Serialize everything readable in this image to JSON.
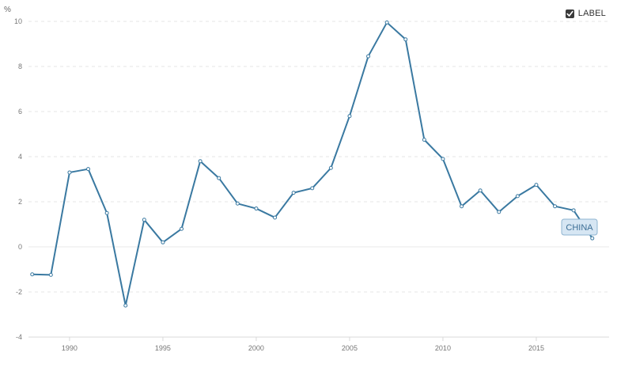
{
  "legend": {
    "label": "LABEL",
    "checked": true
  },
  "chart_data": {
    "type": "line",
    "unit": "%",
    "x": [
      1988,
      1989,
      1990,
      1991,
      1992,
      1993,
      1994,
      1995,
      1996,
      1997,
      1998,
      1999,
      2000,
      2001,
      2002,
      2003,
      2004,
      2005,
      2006,
      2007,
      2008,
      2009,
      2010,
      2011,
      2012,
      2013,
      2014,
      2015,
      2016,
      2017,
      2018
    ],
    "series": [
      {
        "name": "CHINA",
        "color": "#3a79a1",
        "values": [
          -1.22,
          -1.24,
          3.3,
          3.45,
          1.5,
          -2.6,
          1.2,
          0.2,
          0.8,
          3.8,
          3.05,
          1.92,
          1.7,
          1.3,
          2.4,
          2.6,
          3.5,
          5.8,
          8.45,
          9.95,
          9.2,
          4.75,
          3.9,
          1.8,
          2.5,
          1.55,
          2.25,
          2.75,
          1.8,
          1.62,
          0.38
        ]
      }
    ],
    "xticks": [
      1990,
      1995,
      2000,
      2005,
      2010,
      2015
    ],
    "yticks": [
      -4,
      -2,
      0,
      2,
      4,
      6,
      8,
      10
    ],
    "xlim": [
      1987.8,
      2018.9
    ],
    "ylim": [
      -4,
      10
    ],
    "grid": true
  }
}
